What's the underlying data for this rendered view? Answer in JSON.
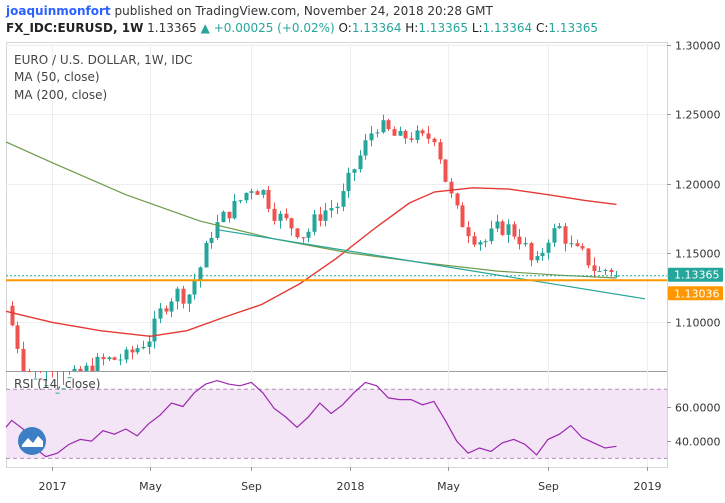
{
  "header": {
    "author": "joaquinmonfort",
    "published": "published on TradingView.com, November 24, 2018 20:28 GMT",
    "symbol": "FX_IDC:EURUSD, 1W",
    "last": "1.13365",
    "change": "+0.00025 (+0.02%)",
    "o_label": "O:",
    "o_value": "1.13364",
    "h_label": "H:",
    "h_value": "1.13365",
    "l_label": "L:",
    "l_value": "1.13364",
    "c_label": "C:",
    "c_value": "1.13365"
  },
  "colors": {
    "up": "#26a69a",
    "down": "#ef5350",
    "ma50": "#e53935",
    "ma200": "#6d9a48",
    "trendline": "#26a69a",
    "support": "#ff9800",
    "rsi": "#9c27b0",
    "rsi_band": "#f3e5f5"
  },
  "chart_data": [
    {
      "type": "candlestick",
      "title": "EURO / U.S. DOLLAR, 1W, IDC",
      "legend": [
        "MA (50, close)",
        "MA (200, close)"
      ],
      "x_ticks": [
        "2017",
        "May",
        "Sep",
        "2018",
        "May",
        "Sep",
        "2019"
      ],
      "y_ticks": [
        "1.30000",
        "1.25000",
        "1.20000",
        "1.15000",
        "1.10000"
      ],
      "ylim": [
        1.065,
        1.302
      ],
      "last_price_tag": "1.13365",
      "support_tag": "1.13036",
      "close_path": [
        [
          "2016-11-05",
          1.112
        ],
        [
          "2016-12-01",
          1.06
        ],
        [
          "2017-01-01",
          1.052
        ],
        [
          "2017-02-01",
          1.062
        ],
        [
          "2017-03-01",
          1.072
        ],
        [
          "2017-04-01",
          1.075
        ],
        [
          "2017-05-01",
          1.09
        ],
        [
          "2017-05-15",
          1.11
        ],
        [
          "2017-06-01",
          1.122
        ],
        [
          "2017-06-15",
          1.118
        ],
        [
          "2017-07-01",
          1.14
        ],
        [
          "2017-07-15",
          1.165
        ],
        [
          "2017-08-01",
          1.178
        ],
        [
          "2017-08-15",
          1.185
        ],
        [
          "2017-09-01",
          1.198
        ],
        [
          "2017-09-15",
          1.195
        ],
        [
          "2017-10-01",
          1.178
        ],
        [
          "2017-10-15",
          1.172
        ],
        [
          "2017-11-07",
          1.162
        ],
        [
          "2017-11-21",
          1.176
        ],
        [
          "2017-12-05",
          1.182
        ],
        [
          "2017-12-19",
          1.185
        ],
        [
          "2018-01-01",
          1.205
        ],
        [
          "2018-01-15",
          1.222
        ],
        [
          "2018-02-01",
          1.243
        ],
        [
          "2018-02-15",
          1.238
        ],
        [
          "2018-03-01",
          1.232
        ],
        [
          "2018-03-15",
          1.235
        ],
        [
          "2018-04-01",
          1.232
        ],
        [
          "2018-04-15",
          1.235
        ],
        [
          "2018-05-01",
          1.196
        ],
        [
          "2018-05-15",
          1.175
        ],
        [
          "2018-06-01",
          1.162
        ],
        [
          "2018-06-15",
          1.158
        ],
        [
          "2018-07-01",
          1.168
        ],
        [
          "2018-07-15",
          1.168
        ],
        [
          "2018-08-01",
          1.158
        ],
        [
          "2018-08-15",
          1.138
        ],
        [
          "2018-09-01",
          1.162
        ],
        [
          "2018-09-15",
          1.168
        ],
        [
          "2018-10-01",
          1.152
        ],
        [
          "2018-10-15",
          1.148
        ],
        [
          "2018-11-01",
          1.135
        ],
        [
          "2018-11-15",
          1.14
        ],
        [
          "2018-11-24",
          1.13365
        ]
      ],
      "ma50": [
        [
          "2016-11-05",
          1.108
        ],
        [
          "2017-01-01",
          1.1
        ],
        [
          "2017-03-01",
          1.094
        ],
        [
          "2017-05-01",
          1.09
        ],
        [
          "2017-06-15",
          1.094
        ],
        [
          "2017-08-01",
          1.104
        ],
        [
          "2017-09-15",
          1.113
        ],
        [
          "2017-11-01",
          1.128
        ],
        [
          "2017-12-15",
          1.146
        ],
        [
          "2018-02-01",
          1.168
        ],
        [
          "2018-03-15",
          1.186
        ],
        [
          "2018-04-15",
          1.194
        ],
        [
          "2018-06-01",
          1.197
        ],
        [
          "2018-07-15",
          1.196
        ],
        [
          "2018-09-01",
          1.192
        ],
        [
          "2018-10-15",
          1.188
        ],
        [
          "2018-11-24",
          1.185
        ]
      ],
      "ma200": [
        [
          "2016-11-05",
          1.23
        ],
        [
          "2017-01-01",
          1.215
        ],
        [
          "2017-04-01",
          1.192
        ],
        [
          "2017-07-01",
          1.173
        ],
        [
          "2017-10-01",
          1.16
        ],
        [
          "2018-01-01",
          1.15
        ],
        [
          "2018-04-01",
          1.143
        ],
        [
          "2018-07-01",
          1.137
        ],
        [
          "2018-09-15",
          1.134
        ],
        [
          "2018-11-24",
          1.132
        ]
      ],
      "trendline": [
        [
          "2017-07-20",
          1.167
        ],
        [
          "2018-12-29",
          1.117
        ]
      ],
      "support_level": 1.13036,
      "last_price": 1.13365
    },
    {
      "type": "line",
      "title": "RSI (14, close)",
      "y_ticks": [
        "60.0000",
        "40.0000"
      ],
      "ylim": [
        25,
        80
      ],
      "bands": [
        30,
        70
      ],
      "values": [
        [
          "2016-11-05",
          48
        ],
        [
          "2016-11-12",
          52
        ],
        [
          "2016-11-26",
          47
        ],
        [
          "2016-12-10",
          36
        ],
        [
          "2016-12-24",
          31
        ],
        [
          "2017-01-07",
          33
        ],
        [
          "2017-01-21",
          38
        ],
        [
          "2017-02-04",
          41
        ],
        [
          "2017-02-18",
          40
        ],
        [
          "2017-03-04",
          46
        ],
        [
          "2017-03-18",
          44
        ],
        [
          "2017-04-01",
          47
        ],
        [
          "2017-04-15",
          43
        ],
        [
          "2017-04-29",
          50
        ],
        [
          "2017-05-13",
          55
        ],
        [
          "2017-05-27",
          62
        ],
        [
          "2017-06-10",
          60
        ],
        [
          "2017-06-24",
          68
        ],
        [
          "2017-07-08",
          73
        ],
        [
          "2017-07-22",
          75
        ],
        [
          "2017-08-05",
          73
        ],
        [
          "2017-08-19",
          72
        ],
        [
          "2017-09-02",
          74
        ],
        [
          "2017-09-16",
          68
        ],
        [
          "2017-09-30",
          59
        ],
        [
          "2017-10-14",
          54
        ],
        [
          "2017-10-28",
          48
        ],
        [
          "2017-11-11",
          54
        ],
        [
          "2017-11-25",
          62
        ],
        [
          "2017-12-09",
          56
        ],
        [
          "2017-12-23",
          61
        ],
        [
          "2018-01-06",
          68
        ],
        [
          "2018-01-20",
          74
        ],
        [
          "2018-02-03",
          72
        ],
        [
          "2018-02-17",
          65
        ],
        [
          "2018-03-03",
          64
        ],
        [
          "2018-03-17",
          64
        ],
        [
          "2018-03-31",
          61
        ],
        [
          "2018-04-14",
          63
        ],
        [
          "2018-04-28",
          52
        ],
        [
          "2018-05-12",
          40
        ],
        [
          "2018-05-26",
          33
        ],
        [
          "2018-06-09",
          36
        ],
        [
          "2018-06-23",
          34
        ],
        [
          "2018-07-07",
          39
        ],
        [
          "2018-07-21",
          41
        ],
        [
          "2018-08-04",
          38
        ],
        [
          "2018-08-18",
          32
        ],
        [
          "2018-09-01",
          41
        ],
        [
          "2018-09-15",
          44
        ],
        [
          "2018-09-29",
          49
        ],
        [
          "2018-10-13",
          42
        ],
        [
          "2018-10-27",
          39
        ],
        [
          "2018-11-10",
          36
        ],
        [
          "2018-11-24",
          37
        ]
      ]
    }
  ]
}
